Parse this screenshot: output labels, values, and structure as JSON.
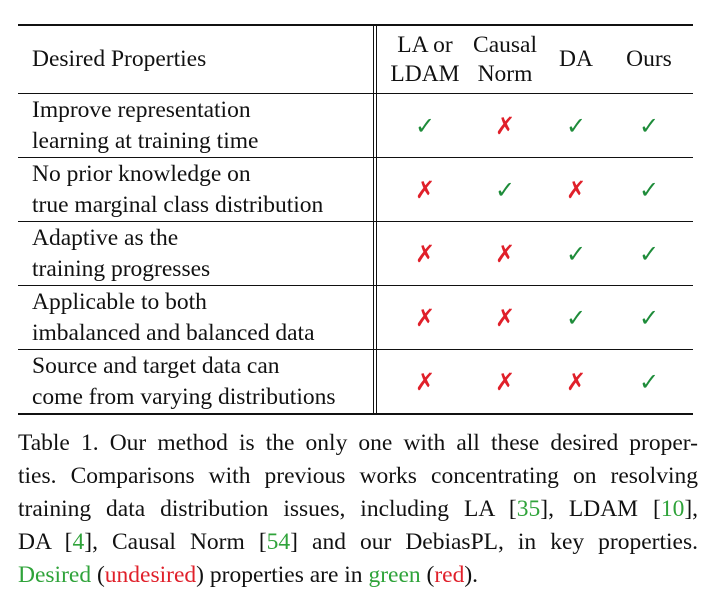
{
  "table": {
    "header": {
      "property_label": "Desired Properties",
      "columns": [
        {
          "line1": "LA or",
          "line2": "LDAM"
        },
        {
          "line1": "Causal",
          "line2": "Norm"
        },
        {
          "line1": "DA",
          "line2": ""
        },
        {
          "line1": "Ours",
          "line2": ""
        }
      ]
    },
    "rows": [
      {
        "line1": "Improve representation",
        "line2": "learning at training time",
        "marks": [
          "✓",
          "✗",
          "✓",
          "✓"
        ]
      },
      {
        "line1": "No prior knowledge on",
        "line2": "true marginal class distribution",
        "marks": [
          "✗",
          "✓",
          "✗",
          "✓"
        ]
      },
      {
        "line1": "Adaptive as the",
        "line2": "training progresses",
        "marks": [
          "✗",
          "✗",
          "✓",
          "✓"
        ]
      },
      {
        "line1": "Applicable to both",
        "line2": "imbalanced and balanced data",
        "marks": [
          "✗",
          "✗",
          "✓",
          "✓"
        ]
      },
      {
        "line1": "Source and target data can",
        "line2": "come from varying distributions",
        "marks": [
          "✗",
          "✗",
          "✗",
          "✓"
        ]
      }
    ],
    "colors": {
      "check": "#1e8c3a",
      "cross": "#e0202a"
    }
  },
  "caption": {
    "line1": "Table 1. Our method is the only one with all these desired proper-",
    "line2": "ties. Comparisons with previous works concentrating on resolving",
    "line3_a": "training data distribution issues, including LA [",
    "ref_la": "35",
    "line3_b": "], LDAM [",
    "ref_ldam": "10",
    "line3_c": "],",
    "line4_a": "DA [",
    "ref_da": "4",
    "line4_b": "], Causal Norm [",
    "ref_cn": "54",
    "line4_c": "] and our DebiasPL, in key properties.",
    "line5_desired": "Desired",
    "line5_open": " (",
    "line5_undesired": "undesired",
    "line5_mid": ") properties are in ",
    "line5_green": "green",
    "line5_open2": " (",
    "line5_red": "red",
    "line5_end": ").",
    "colors": {
      "green": "#2fa33a",
      "red": "#e0202a"
    }
  }
}
